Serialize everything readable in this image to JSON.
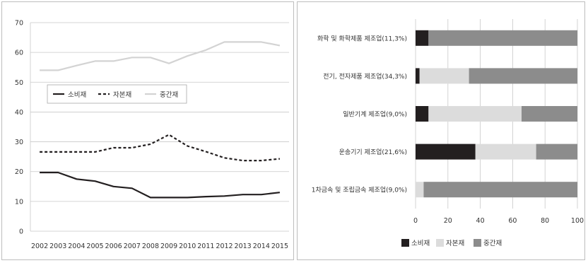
{
  "chart_data": [
    {
      "type": "line",
      "x": [
        "2002",
        "2003",
        "2004",
        "2005",
        "2006",
        "2007",
        "2008",
        "2009",
        "2010",
        "2011",
        "2012",
        "2013",
        "2014",
        "2015"
      ],
      "ylim": [
        0,
        70
      ],
      "yticks": [
        0,
        10,
        20,
        30,
        40,
        50,
        60,
        70
      ],
      "grid": true,
      "legend_position": "middle-left",
      "series": [
        {
          "name": "소비재",
          "color": "#231f20",
          "style": "solid",
          "values": [
            19.7,
            19.7,
            17.5,
            16.8,
            15.0,
            14.4,
            11.3,
            11.3,
            11.3,
            11.6,
            11.8,
            12.3,
            12.3,
            13.0
          ]
        },
        {
          "name": "자본재",
          "color": "#231f20",
          "style": "dashed",
          "values": [
            26.6,
            26.6,
            26.6,
            26.6,
            28.0,
            28.0,
            29.2,
            32.4,
            28.6,
            26.7,
            24.6,
            23.7,
            23.7,
            24.3
          ]
        },
        {
          "name": "중간재",
          "color": "#d3d3d3",
          "style": "solid",
          "values": [
            54.0,
            54.0,
            55.6,
            57.1,
            57.1,
            58.3,
            58.3,
            56.3,
            58.8,
            60.8,
            63.5,
            63.5,
            63.5,
            62.3
          ]
        }
      ]
    },
    {
      "type": "bar",
      "orientation": "horizontal",
      "stacked": true,
      "categories": [
        "화학 및 화학제품 제조업(11,3%)",
        "전기, 전자제품 제조업(34,3%)",
        "일반기계 제조업(9,0%)",
        "운송기기 제조업(21,6%)",
        "1차금속 및 조립금속 제조업(9,0%)"
      ],
      "xlim": [
        0,
        100
      ],
      "xticks": [
        0,
        20,
        40,
        60,
        80,
        100
      ],
      "grid": true,
      "legend_position": "bottom",
      "series": [
        {
          "name": "소비재",
          "color": "#231f20",
          "values": [
            8,
            2.5,
            8,
            37,
            0
          ]
        },
        {
          "name": "자본재",
          "color": "#dcdcdc",
          "values": [
            0,
            30.5,
            57.5,
            37.5,
            5
          ]
        },
        {
          "name": "중간재",
          "color": "#8c8c8c",
          "values": [
            92,
            67,
            34.5,
            25.5,
            95
          ]
        }
      ]
    }
  ]
}
